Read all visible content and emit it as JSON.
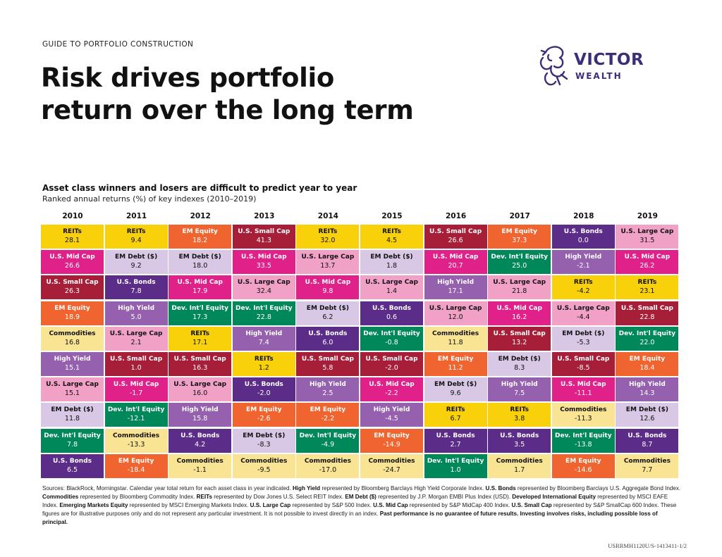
{
  "header": {
    "eyebrow": "GUIDE TO PORTFOLIO CONSTRUCTION",
    "title_line1": "Risk drives portfolio",
    "title_line2": "return over the long term"
  },
  "logo": {
    "word1": "VICTOR",
    "word2": "WEALTH",
    "color": "#3b2f7a"
  },
  "chart_header": {
    "subtitle": "Asset class winners and losers are difficult to predict year to year",
    "note": "Ranked annual returns (%) of key indexes (2010–2019)"
  },
  "colors": {
    "REITs": "#f9d10b",
    "U.S. Mid Cap": "#e0218a",
    "U.S. Small Cap": "#a61e38",
    "EM Equity": "#f06430",
    "Commodities": "#f9e493",
    "High Yield": "#9560ae",
    "U.S. Large Cap": "#f2a1c6",
    "EM Debt ($)": "#d8c8e6",
    "Dev. Int'l Equity": "#00875a",
    "U.S. Bonds": "#5b2c88"
  },
  "light_text_classes": [
    "U.S. Mid Cap",
    "U.S. Small Cap",
    "EM Equity",
    "High Yield",
    "Dev. Int'l Equity",
    "U.S. Bonds"
  ],
  "chart_data": {
    "type": "table",
    "title": "Asset class winners and losers are difficult to predict year to year",
    "subtitle": "Ranked annual returns (%) of key indexes (2010–2019)",
    "years": [
      "2010",
      "2011",
      "2012",
      "2013",
      "2014",
      "2015",
      "2016",
      "2017",
      "2018",
      "2019"
    ],
    "columns": [
      [
        [
          "REITs",
          "28.1"
        ],
        [
          "U.S. Mid Cap",
          "26.6"
        ],
        [
          "U.S. Small Cap",
          "26.3"
        ],
        [
          "EM Equity",
          "18.9"
        ],
        [
          "Commodities",
          "16.8"
        ],
        [
          "High Yield",
          "15.1"
        ],
        [
          "U.S. Large Cap",
          "15.1"
        ],
        [
          "EM Debt ($)",
          "11.8"
        ],
        [
          "Dev. Int'l Equity",
          "7.8"
        ],
        [
          "U.S. Bonds",
          "6.5"
        ]
      ],
      [
        [
          "REITs",
          "9.4"
        ],
        [
          "EM Debt ($)",
          "9.2"
        ],
        [
          "U.S. Bonds",
          "7.8"
        ],
        [
          "High Yield",
          "5.0"
        ],
        [
          "U.S. Large Cap",
          "2.1"
        ],
        [
          "U.S. Small Cap",
          "1.0"
        ],
        [
          "U.S. Mid Cap",
          "-1.7"
        ],
        [
          "Dev. Int'l Equity",
          "-12.1"
        ],
        [
          "Commodities",
          "-13.3"
        ],
        [
          "EM Equity",
          "-18.4"
        ]
      ],
      [
        [
          "EM Equity",
          "18.2"
        ],
        [
          "EM Debt ($)",
          "18.0"
        ],
        [
          "U.S. Mid Cap",
          "17.9"
        ],
        [
          "Dev. Int'l Equity",
          "17.3"
        ],
        [
          "REITs",
          "17.1"
        ],
        [
          "U.S. Small Cap",
          "16.3"
        ],
        [
          "U.S. Large Cap",
          "16.0"
        ],
        [
          "High Yield",
          "15.8"
        ],
        [
          "U.S. Bonds",
          "4.2"
        ],
        [
          "Commodities",
          "-1.1"
        ]
      ],
      [
        [
          "U.S. Small Cap",
          "41.3"
        ],
        [
          "U.S. Mid Cap",
          "33.5"
        ],
        [
          "U.S. Large Cap",
          "32.4"
        ],
        [
          "Dev. Int'l Equity",
          "22.8"
        ],
        [
          "High Yield",
          "7.4"
        ],
        [
          "REITs",
          "1.2"
        ],
        [
          "U.S. Bonds",
          "-2.0"
        ],
        [
          "EM Equity",
          "-2.6"
        ],
        [
          "EM Debt ($)",
          "-8.3"
        ],
        [
          "Commodities",
          "-9.5"
        ]
      ],
      [
        [
          "REITs",
          "32.0"
        ],
        [
          "U.S. Large Cap",
          "13.7"
        ],
        [
          "U.S. Mid Cap",
          "9.8"
        ],
        [
          "EM Debt ($)",
          "6.2"
        ],
        [
          "U.S. Bonds",
          "6.0"
        ],
        [
          "U.S. Small Cap",
          "5.8"
        ],
        [
          "High Yield",
          "2.5"
        ],
        [
          "EM Equity",
          "-2.2"
        ],
        [
          "Dev. Int'l Equity",
          "-4.9"
        ],
        [
          "Commodities",
          "-17.0"
        ]
      ],
      [
        [
          "REITs",
          "4.5"
        ],
        [
          "EM Debt ($)",
          "1.8"
        ],
        [
          "U.S. Large Cap",
          "1.4"
        ],
        [
          "U.S. Bonds",
          "0.6"
        ],
        [
          "Dev. Int'l Equity",
          "-0.8"
        ],
        [
          "U.S. Small Cap",
          "-2.0"
        ],
        [
          "U.S. Mid Cap",
          "-2.2"
        ],
        [
          "High Yield",
          "-4.5"
        ],
        [
          "EM Equity",
          "-14.9"
        ],
        [
          "Commodities",
          "-24.7"
        ]
      ],
      [
        [
          "U.S. Small Cap",
          "26.6"
        ],
        [
          "U.S. Mid Cap",
          "20.7"
        ],
        [
          "High Yield",
          "17.1"
        ],
        [
          "U.S. Large Cap",
          "12.0"
        ],
        [
          "Commodities",
          "11.8"
        ],
        [
          "EM Equity",
          "11.2"
        ],
        [
          "EM Debt ($)",
          "9.6"
        ],
        [
          "REITs",
          "6.7"
        ],
        [
          "U.S. Bonds",
          "2.7"
        ],
        [
          "Dev. Int'l Equity",
          "1.0"
        ]
      ],
      [
        [
          "EM Equity",
          "37.3"
        ],
        [
          "Dev. Int'l Equity",
          "25.0"
        ],
        [
          "U.S. Large Cap",
          "21.8"
        ],
        [
          "U.S. Mid Cap",
          "16.2"
        ],
        [
          "U.S. Small Cap",
          "13.2"
        ],
        [
          "EM Debt ($)",
          "8.3"
        ],
        [
          "High Yield",
          "7.5"
        ],
        [
          "REITs",
          "3.8"
        ],
        [
          "U.S. Bonds",
          "3.5"
        ],
        [
          "Commodities",
          "1.7"
        ]
      ],
      [
        [
          "U.S. Bonds",
          "0.0"
        ],
        [
          "High Yield",
          "-2.1"
        ],
        [
          "REITs",
          "-4.2"
        ],
        [
          "U.S. Large Cap",
          "-4.4"
        ],
        [
          "EM Debt ($)",
          "-5.3"
        ],
        [
          "U.S. Small Cap",
          "-8.5"
        ],
        [
          "U.S. Mid Cap",
          "-11.1"
        ],
        [
          "Commodities",
          "-11.3"
        ],
        [
          "Dev. Int'l Equity",
          "-13.8"
        ],
        [
          "EM Equity",
          "-14.6"
        ]
      ],
      [
        [
          "U.S. Large Cap",
          "31.5"
        ],
        [
          "U.S. Mid Cap",
          "26.2"
        ],
        [
          "REITs",
          "23.1"
        ],
        [
          "U.S. Small Cap",
          "22.8"
        ],
        [
          "Dev. Int'l Equity",
          "22.0"
        ],
        [
          "EM Equity",
          "18.4"
        ],
        [
          "High Yield",
          "14.3"
        ],
        [
          "EM Debt ($)",
          "12.6"
        ],
        [
          "U.S. Bonds",
          "8.7"
        ],
        [
          "Commodities",
          "7.7"
        ]
      ]
    ]
  },
  "footnote": [
    {
      "t": "Sources: BlackRock, Morningstar. Calendar year total return for each asset class in year indicated. "
    },
    {
      "t": "High Yield",
      "b": true
    },
    {
      "t": " represented by Bloomberg Barclays High Yield Corporate Index. "
    },
    {
      "t": "U.S. Bonds",
      "b": true
    },
    {
      "t": " represented by Bloomberg Barclays U.S. Aggregate Bond Index. "
    },
    {
      "t": "Commodities",
      "b": true
    },
    {
      "t": " represented by Bloomberg Commodity Index. "
    },
    {
      "t": "REITs",
      "b": true
    },
    {
      "t": " represented by Dow Jones U.S. Select REIT Index. "
    },
    {
      "t": "EM Debt ($)",
      "b": true
    },
    {
      "t": " represented by J.P. Morgan EMBI Plus Index (USD). "
    },
    {
      "t": "Developed International Equity",
      "b": true
    },
    {
      "t": " represented by MSCI EAFE Index. "
    },
    {
      "t": "Emerging Markets Equity",
      "b": true
    },
    {
      "t": " represented by MSCI Emerging Markets Index. "
    },
    {
      "t": "U.S. Large Cap",
      "b": true
    },
    {
      "t": " represented by S&P 500 Index. "
    },
    {
      "t": "U.S. Mid Cap",
      "b": true
    },
    {
      "t": " represented by S&P MidCap 400 Index. "
    },
    {
      "t": "U.S. Small Cap",
      "b": true
    },
    {
      "t": " represented by S&P SmallCap 600 Index. These figures are for illustrative purposes only and do not represent any particular investment. It is not possible to invest directly in an index. "
    },
    {
      "t": "Past performance is no guarantee of future results. Investing involves risks, including possible loss of principal.",
      "b": true
    }
  ],
  "doc_code": "USRRMH1120U/S-1413411-1/2"
}
